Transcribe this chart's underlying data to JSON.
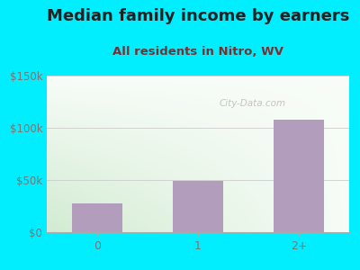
{
  "title": "Median family income by earners",
  "subtitle": "All residents in Nitro, WV",
  "categories": [
    "0",
    "1",
    "2+"
  ],
  "values": [
    28000,
    49000,
    108000
  ],
  "bar_color": "#b39dbd",
  "ylim": [
    0,
    150000
  ],
  "yticks": [
    0,
    50000,
    100000,
    150000
  ],
  "ytick_labels": [
    "$0",
    "$50k",
    "$100k",
    "$150k"
  ],
  "bg_outer": "#00eeff",
  "watermark": "City-Data.com",
  "title_fontsize": 13,
  "subtitle_fontsize": 9.5,
  "title_color": "#222222",
  "subtitle_color": "#7a3030",
  "tick_color": "#777777",
  "grid_color": "#cccccc",
  "plot_bg_topleft": "#d8edd8",
  "plot_bg_topright": "#f5faf5",
  "plot_bg_bottomright": "#f0f5e8"
}
